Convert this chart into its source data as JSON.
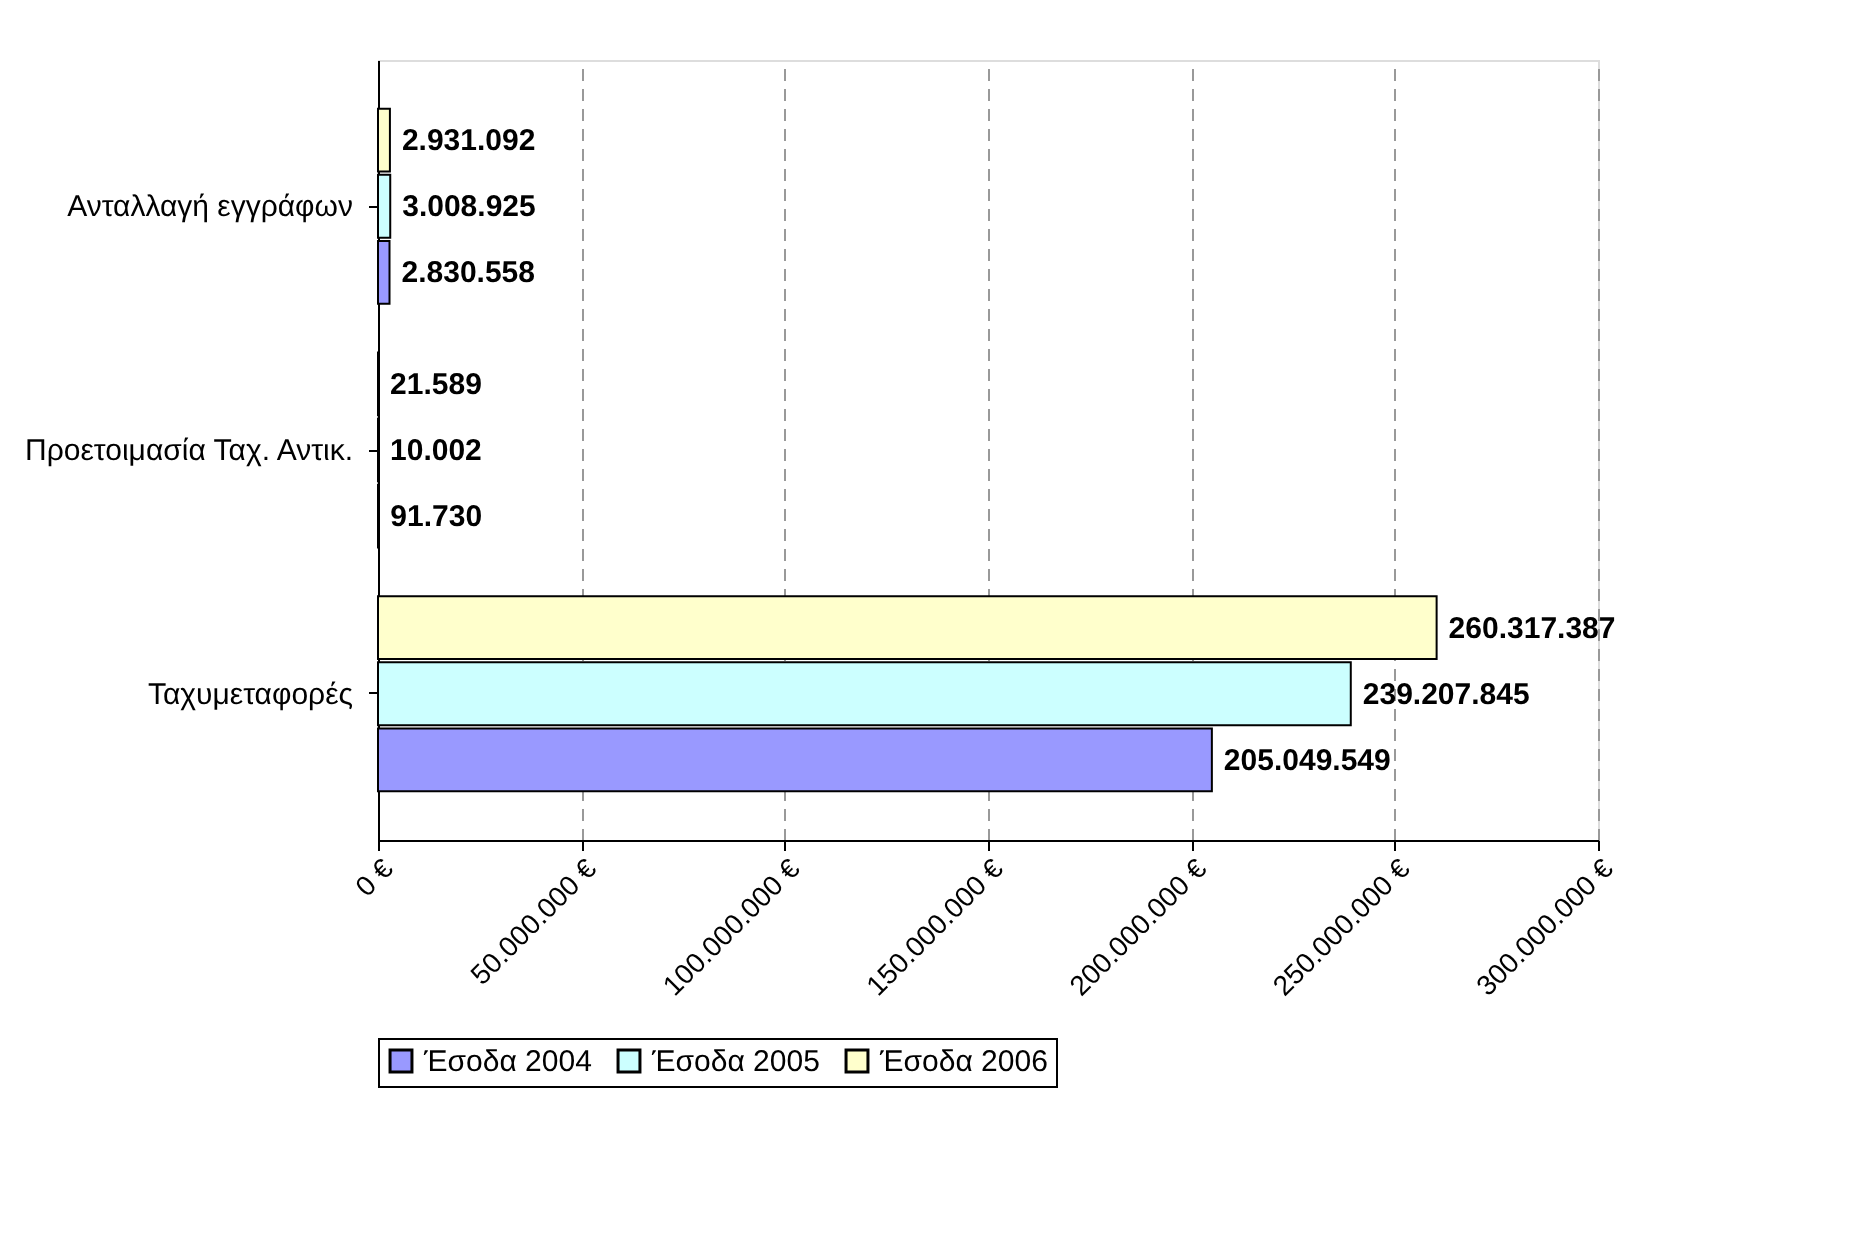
{
  "chart_data": {
    "type": "bar",
    "orientation": "horizontal",
    "categories": [
      "Ανταλλαγή εγγράφων",
      "Προετοιμασία Ταχ. Αντικ.",
      "Ταχυμεταφορές"
    ],
    "series": [
      {
        "name": "Έσοδα 2004",
        "color": "#9999ff",
        "values": [
          2830558,
          91730,
          205049549
        ],
        "value_labels": [
          "2.830.558",
          "91.730",
          "205.049.549"
        ]
      },
      {
        "name": "Έσοδα 2005",
        "color": "#ccffff",
        "values": [
          3008925,
          10002,
          239207845
        ],
        "value_labels": [
          "3.008.925",
          "10.002",
          "239.207.845"
        ]
      },
      {
        "name": "Έσοδα 2006",
        "color": "#ffffcc",
        "values": [
          2931092,
          21589,
          260317387
        ],
        "value_labels": [
          "2.931.092",
          "21.589",
          "260.317.387"
        ]
      }
    ],
    "xlim": [
      0,
      300000000
    ],
    "xticks": [
      {
        "value": 0,
        "label": "0 €"
      },
      {
        "value": 50000000,
        "label": "50.000.000 €"
      },
      {
        "value": 100000000,
        "label": "100.000.000 €"
      },
      {
        "value": 150000000,
        "label": "150.000.000 €"
      },
      {
        "value": 200000000,
        "label": "200.000.000 €"
      },
      {
        "value": 250000000,
        "label": "250.000.000 €"
      },
      {
        "value": 300000000,
        "label": "300.000.000 €"
      }
    ],
    "grid": "x",
    "legend": "bottom"
  }
}
